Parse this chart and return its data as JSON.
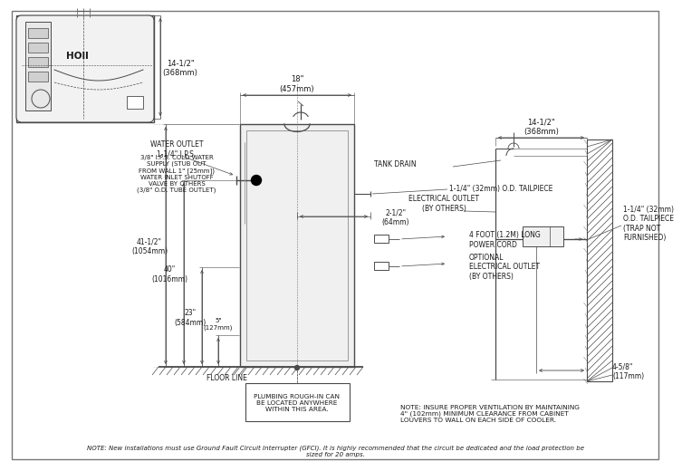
{
  "bg_color": "#ffffff",
  "line_color": "#4a4a4a",
  "text_color": "#1a1a1a",
  "note_bottom": "NOTE: New installations must use Ground Fault Circuit Interrupter (GFCI). It is highly recommended that the circuit be dedicated and the load protection be\nsized for 20 amps.",
  "note_right": "NOTE: INSURE PROPER VENTILATION BY MAINTAINING\n4\" (102mm) MINIMUM CLEARANCE FROM CABINET\nLOUVERS TO WALL ON EACH SIDE OF COOLER.",
  "plumbing_note": "PLUMBING ROUGH-IN CAN\nBE LOCATED ANYWHERE\nWITHIN THIS AREA.",
  "labels": {
    "water_outlet": "WATER OUTLET\n1-1/4\" I.P.S.",
    "cold_water": "3/8\" I.P.S. COLD WATER\nSUPPLY (STUB OUT\nFROM WALL 1\" [25mm])\nWATER INLET SHUTOFF\nVALVE BY OTHERS\n(3/8\" O.D. TUBE OUTLET)",
    "dim_41": "41-1/2\"\n(1054mm)",
    "dim_40": "40\"\n(1016mm)",
    "dim_23": "23\"\n(584mm)",
    "dim_5": "5\"\n(127mm)",
    "floor_line": "FLOOR LINE",
    "dim_18": "18\"\n(457mm)",
    "dim_14_top": "14-1/2\"\n(368mm)",
    "dim_14_right": "14-1/2\"\n(368mm)",
    "tank_drain": "TANK DRAIN",
    "elec_outlet": "ELECTRICAL OUTLET\n(BY OTHERS)",
    "tailpiece_main": "1-1/4\" (32mm) O.D. TAILPIECE",
    "dim_2_5": "2-1/2\"\n(64mm)",
    "power_cord": "4 FOOT (1.2M) LONG\nPOWER CORD",
    "opt_elec": "OPTIONAL\nELECTRICAL OUTLET\n(BY OTHERS)",
    "tailpiece_right": "1-1/4\" (32mm)\nO.D. TAILPIECE\n(TRAP NOT\nFURNISHED)",
    "dim_4_5": "4-5/8\"\n(117mm)"
  }
}
